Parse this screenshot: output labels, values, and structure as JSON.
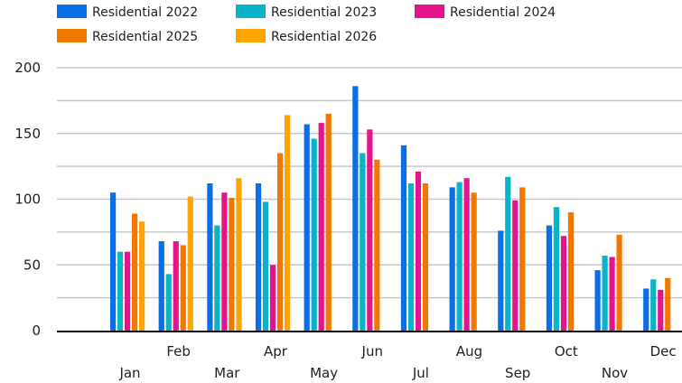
{
  "chart_data": {
    "type": "bar",
    "title": "",
    "xlabel": "",
    "ylabel": "",
    "ylim": [
      0,
      200
    ],
    "yticks": [
      0,
      50,
      100,
      150,
      200
    ],
    "grid": true,
    "legend_position": "top-left",
    "categories": [
      "Jan",
      "Feb",
      "Mar",
      "Apr",
      "May",
      "Jun",
      "Jul",
      "Aug",
      "Sep",
      "Oct",
      "Nov",
      "Dec"
    ],
    "series": [
      {
        "name": "Residential 2022",
        "color": "#0a6ee6",
        "values": [
          105,
          68,
          112,
          112,
          157,
          186,
          141,
          109,
          76,
          80,
          46,
          32
        ]
      },
      {
        "name": "Residential 2023",
        "color": "#0ab4c8",
        "values": [
          60,
          43,
          80,
          98,
          146,
          135,
          112,
          113,
          117,
          94,
          57,
          39
        ]
      },
      {
        "name": "Residential 2024",
        "color": "#e6148c",
        "values": [
          60,
          68,
          105,
          50,
          158,
          153,
          121,
          116,
          99,
          72,
          56,
          31
        ]
      },
      {
        "name": "Residential 2025",
        "color": "#f07800",
        "values": [
          89,
          65,
          101,
          135,
          165,
          130,
          112,
          105,
          109,
          90,
          73,
          40
        ]
      },
      {
        "name": "Residential 2026",
        "color": "#ffa500",
        "values": [
          83,
          102,
          116,
          164,
          null,
          null,
          null,
          null,
          null,
          null,
          null,
          null
        ]
      }
    ]
  }
}
